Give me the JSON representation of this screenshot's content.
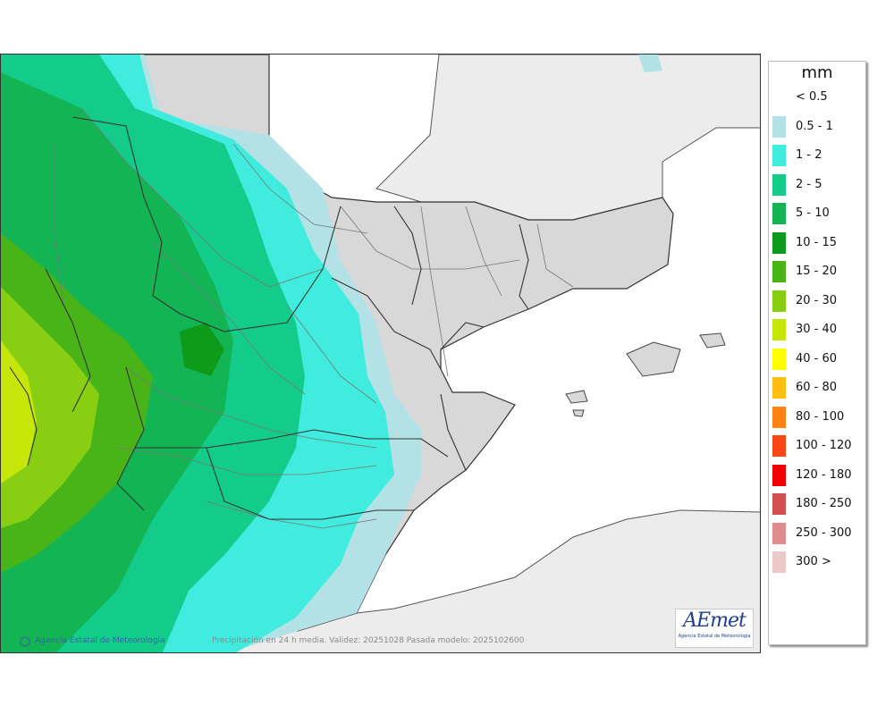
{
  "legend": {
    "unit": "mm",
    "items": [
      {
        "label": "< 0.5",
        "color": "#ffffff"
      },
      {
        "label": "0.5 - 1",
        "color": "#b2e1e6"
      },
      {
        "label": "1 - 2",
        "color": "#40ecdd"
      },
      {
        "label": "2 - 5",
        "color": "#13cc8a"
      },
      {
        "label": "5 - 10",
        "color": "#12b454"
      },
      {
        "label": "10 - 15",
        "color": "#0e9a1b"
      },
      {
        "label": "15 - 20",
        "color": "#48b418"
      },
      {
        "label": "20 - 30",
        "color": "#88ce12"
      },
      {
        "label": "30 - 40",
        "color": "#c6e60a"
      },
      {
        "label": "40 - 60",
        "color": "#fefe00"
      },
      {
        "label": "60 - 80",
        "color": "#ffbe14"
      },
      {
        "label": "80 - 100",
        "color": "#ff8214"
      },
      {
        "label": "100 - 120",
        "color": "#fa4614"
      },
      {
        "label": "120 - 180",
        "color": "#f00000"
      },
      {
        "label": "180 - 250",
        "color": "#d25050"
      },
      {
        "label": "250 - 300",
        "color": "#e08c8c"
      },
      {
        "label": "300 >",
        "color": "#ecc8c8"
      }
    ]
  },
  "map": {
    "credit": "Agencia Estatal de Meteorología",
    "validity": "Precipitación en 24 h media. Validez: 20251028 Pasada modelo: 2025102600"
  },
  "logo": {
    "text": "AEmet",
    "subtitle": "Agencia Estatal de Meteorología"
  },
  "colors": {
    "sea": "#ffffff",
    "foreign_land": "#ececec",
    "dry_land": "#d8d8d8",
    "border": "#333333"
  }
}
